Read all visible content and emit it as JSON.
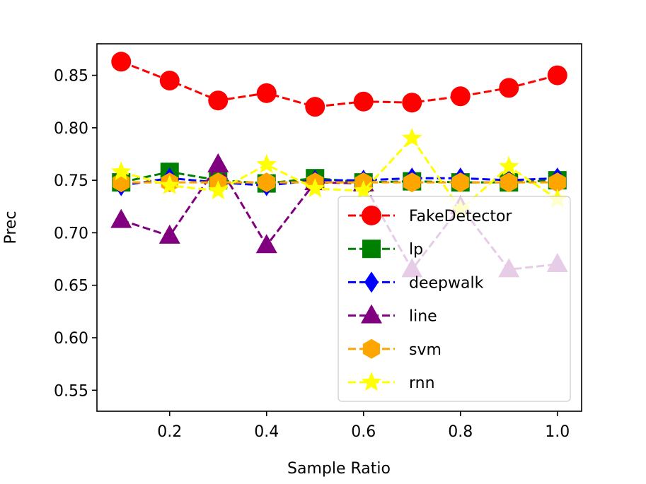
{
  "chart_data": {
    "type": "line",
    "title": "",
    "xlabel": "Sample Ratio",
    "ylabel": "Prec",
    "xlim": [
      0.05,
      1.05
    ],
    "ylim": [
      0.53,
      0.88
    ],
    "xticks": [
      0.2,
      0.4,
      0.6,
      0.8,
      1.0
    ],
    "xtick_labels": [
      "0.2",
      "0.4",
      "0.6",
      "0.8",
      "1.0"
    ],
    "yticks": [
      0.55,
      0.6,
      0.65,
      0.7,
      0.75,
      0.8,
      0.85
    ],
    "ytick_labels": [
      "0.55",
      "0.60",
      "0.65",
      "0.70",
      "0.75",
      "0.80",
      "0.85"
    ],
    "x": [
      0.1,
      0.2,
      0.3,
      0.4,
      0.5,
      0.6,
      0.7,
      0.8,
      0.9,
      1.0
    ],
    "legend_position": "lower-right",
    "series": [
      {
        "name": "FakeDetector",
        "color": "#ff0000",
        "marker": "circle",
        "values": [
          0.863,
          0.845,
          0.826,
          0.833,
          0.82,
          0.825,
          0.824,
          0.83,
          0.838,
          0.85
        ]
      },
      {
        "name": "lp",
        "color": "#008000",
        "marker": "square",
        "values": [
          0.748,
          0.758,
          0.75,
          0.747,
          0.752,
          0.748,
          0.749,
          0.748,
          0.748,
          0.75
        ]
      },
      {
        "name": "deepwalk",
        "color": "#0000ff",
        "marker": "diamond",
        "values": [
          0.745,
          0.752,
          0.748,
          0.745,
          0.75,
          0.75,
          0.752,
          0.752,
          0.75,
          0.752
        ]
      },
      {
        "name": "line",
        "color": "#800080",
        "marker": "triangle",
        "values": [
          0.712,
          0.697,
          0.765,
          0.688,
          0.748,
          0.747,
          0.665,
          0.725,
          0.665,
          0.67
        ]
      },
      {
        "name": "svm",
        "color": "#ffa500",
        "marker": "hexagon",
        "values": [
          0.748,
          0.748,
          0.748,
          0.748,
          0.748,
          0.748,
          0.748,
          0.748,
          0.748,
          0.748
        ]
      },
      {
        "name": "rnn",
        "color": "#ffff00",
        "marker": "star",
        "values": [
          0.758,
          0.745,
          0.74,
          0.765,
          0.742,
          0.74,
          0.79,
          0.722,
          0.763,
          0.732
        ]
      }
    ]
  }
}
